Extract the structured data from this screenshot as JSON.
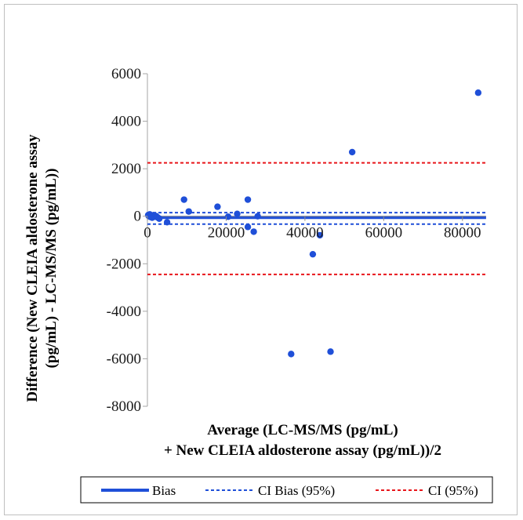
{
  "chart_data": {
    "type": "scatter",
    "title": "",
    "xlabel_lines": [
      "Average (LC-MS/MS (pg/mL)",
      "+ New CLEIA aldosterone assay (pg/mL))/2"
    ],
    "ylabel_lines": [
      "Difference (New CLEIA aldosterone assay",
      "(pg/mL) - LC-MS/MS (pg/mL))"
    ],
    "xlim": [
      0,
      90000
    ],
    "ylim": [
      -8000,
      6000
    ],
    "x_ticks": [
      0,
      20000,
      40000,
      60000,
      80000
    ],
    "y_ticks": [
      6000,
      4000,
      2000,
      0,
      -2000,
      -4000,
      -6000,
      -8000
    ],
    "x_tick_labels": [
      "0",
      "20000",
      "40000",
      "60000",
      "80000"
    ],
    "y_tick_labels": [
      "6000",
      "4000",
      "2000",
      "0",
      "-2000",
      "-4000",
      "-6000",
      "-8000"
    ],
    "grid": false,
    "legend_position": "bottom",
    "series": [
      {
        "type": "scatter",
        "color": "#1f4fd8",
        "points": [
          {
            "x": 200,
            "y": 50
          },
          {
            "x": 400,
            "y": 0
          },
          {
            "x": 600,
            "y": 80
          },
          {
            "x": 800,
            "y": -30
          },
          {
            "x": 1000,
            "y": 20
          },
          {
            "x": 1200,
            "y": -60
          },
          {
            "x": 1500,
            "y": 40
          },
          {
            "x": 1800,
            "y": -20
          },
          {
            "x": 2200,
            "y": 10
          },
          {
            "x": 2600,
            "y": -50
          },
          {
            "x": 3000,
            "y": -100
          },
          {
            "x": 5000,
            "y": -250
          },
          {
            "x": 9300,
            "y": 700
          },
          {
            "x": 10500,
            "y": 200
          },
          {
            "x": 17800,
            "y": 400
          },
          {
            "x": 20500,
            "y": -20
          },
          {
            "x": 22800,
            "y": 100
          },
          {
            "x": 25500,
            "y": 700
          },
          {
            "x": 25500,
            "y": -450
          },
          {
            "x": 27000,
            "y": -650
          },
          {
            "x": 28000,
            "y": 0
          },
          {
            "x": 36500,
            "y": -5800
          },
          {
            "x": 42000,
            "y": -1600
          },
          {
            "x": 43800,
            "y": -800
          },
          {
            "x": 46500,
            "y": -5700
          },
          {
            "x": 52000,
            "y": 2700
          },
          {
            "x": 84000,
            "y": 5200
          }
        ]
      }
    ],
    "reference_lines": [
      {
        "name": "Bias",
        "y": -50,
        "color": "#1f4fd8",
        "style": "solid"
      },
      {
        "name": "CI Bias (95%)",
        "y": 150,
        "color": "#1f4fd8",
        "style": "dashed"
      },
      {
        "name": "CI Bias (95%)",
        "y": -330,
        "color": "#1f4fd8",
        "style": "dashed"
      },
      {
        "name": "CI (95%)",
        "y": 2250,
        "color": "#e8161b",
        "style": "dashed"
      },
      {
        "name": "CI (95%)",
        "y": -2450,
        "color": "#e8161b",
        "style": "dashed"
      }
    ],
    "legend": [
      {
        "label": "Bias",
        "color": "#1f4fd8",
        "style": "solid"
      },
      {
        "label": "CI Bias (95%)",
        "color": "#1f4fd8",
        "style": "dashed"
      },
      {
        "label": "CI (95%)",
        "color": "#e8161b",
        "style": "dashed"
      }
    ]
  }
}
